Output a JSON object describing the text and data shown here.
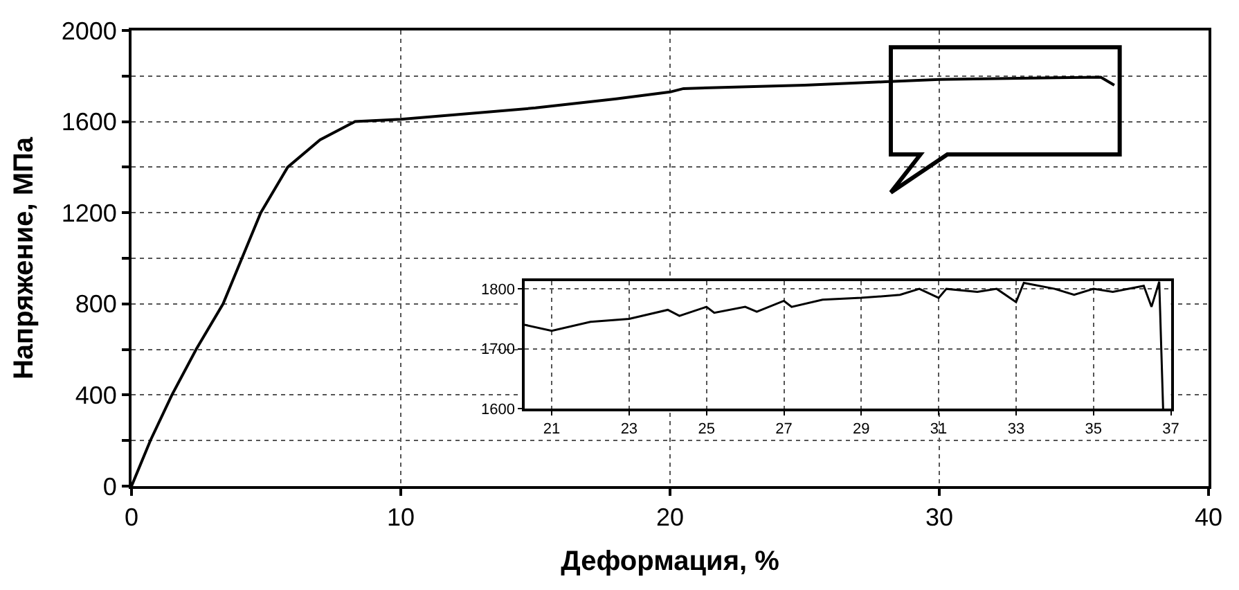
{
  "chart_data": [
    {
      "type": "line",
      "xlabel": "Деформация, %",
      "ylabel": "Напряжение, МПа",
      "xlim": [
        0,
        40
      ],
      "xticks": [
        0,
        10,
        20,
        30,
        40
      ],
      "ylim": [
        0,
        2000
      ],
      "yticks": [
        0,
        {
          "value": 200,
          "label": null
        },
        400,
        {
          "value": 600,
          "label": null
        },
        800,
        {
          "value": 1000,
          "label": null
        },
        1200,
        {
          "value": 1400,
          "label": null
        },
        1600,
        {
          "value": 1800,
          "label": null
        },
        2000
      ],
      "grid": true,
      "line_style": "solid",
      "series": [
        {
          "color": "#000000",
          "x": [
            0,
            0.7,
            1.5,
            2.4,
            3.4,
            4.1,
            4.8,
            5.8,
            7,
            8.3,
            10,
            12,
            15,
            18,
            20,
            20.5,
            25,
            28,
            30,
            33,
            36,
            36.5
          ],
          "values": [
            0,
            200,
            400,
            600,
            800,
            1000,
            1200,
            1400,
            1520,
            1600,
            1610,
            1630,
            1660,
            1700,
            1730,
            1745,
            1760,
            1775,
            1785,
            1790,
            1795,
            1760
          ]
        }
      ]
    },
    {
      "type": "line",
      "xlim": [
        20.3,
        37
      ],
      "xticks": [
        21,
        23,
        25,
        27,
        29,
        31,
        33,
        35,
        37
      ],
      "ylim": [
        1600,
        1813
      ],
      "yticks": [
        1600,
        1700,
        1800
      ],
      "grid": true,
      "line_style": "solid",
      "series": [
        {
          "color": "#000000",
          "x": [
            20.3,
            21,
            22,
            23,
            24,
            24.3,
            25,
            25.2,
            26,
            26.3,
            27,
            27.2,
            28,
            29,
            30,
            30.5,
            31,
            31.2,
            32,
            32.5,
            33,
            33.2,
            34,
            34.5,
            35,
            35.5,
            36.3,
            36.5,
            36.7,
            36.8
          ],
          "values": [
            1740,
            1730,
            1745,
            1750,
            1765,
            1755,
            1770,
            1760,
            1770,
            1762,
            1780,
            1770,
            1782,
            1785,
            1790,
            1800,
            1785,
            1800,
            1795,
            1800,
            1778,
            1810,
            1800,
            1790,
            1800,
            1795,
            1805,
            1770,
            1812,
            1600
          ]
        }
      ]
    }
  ]
}
